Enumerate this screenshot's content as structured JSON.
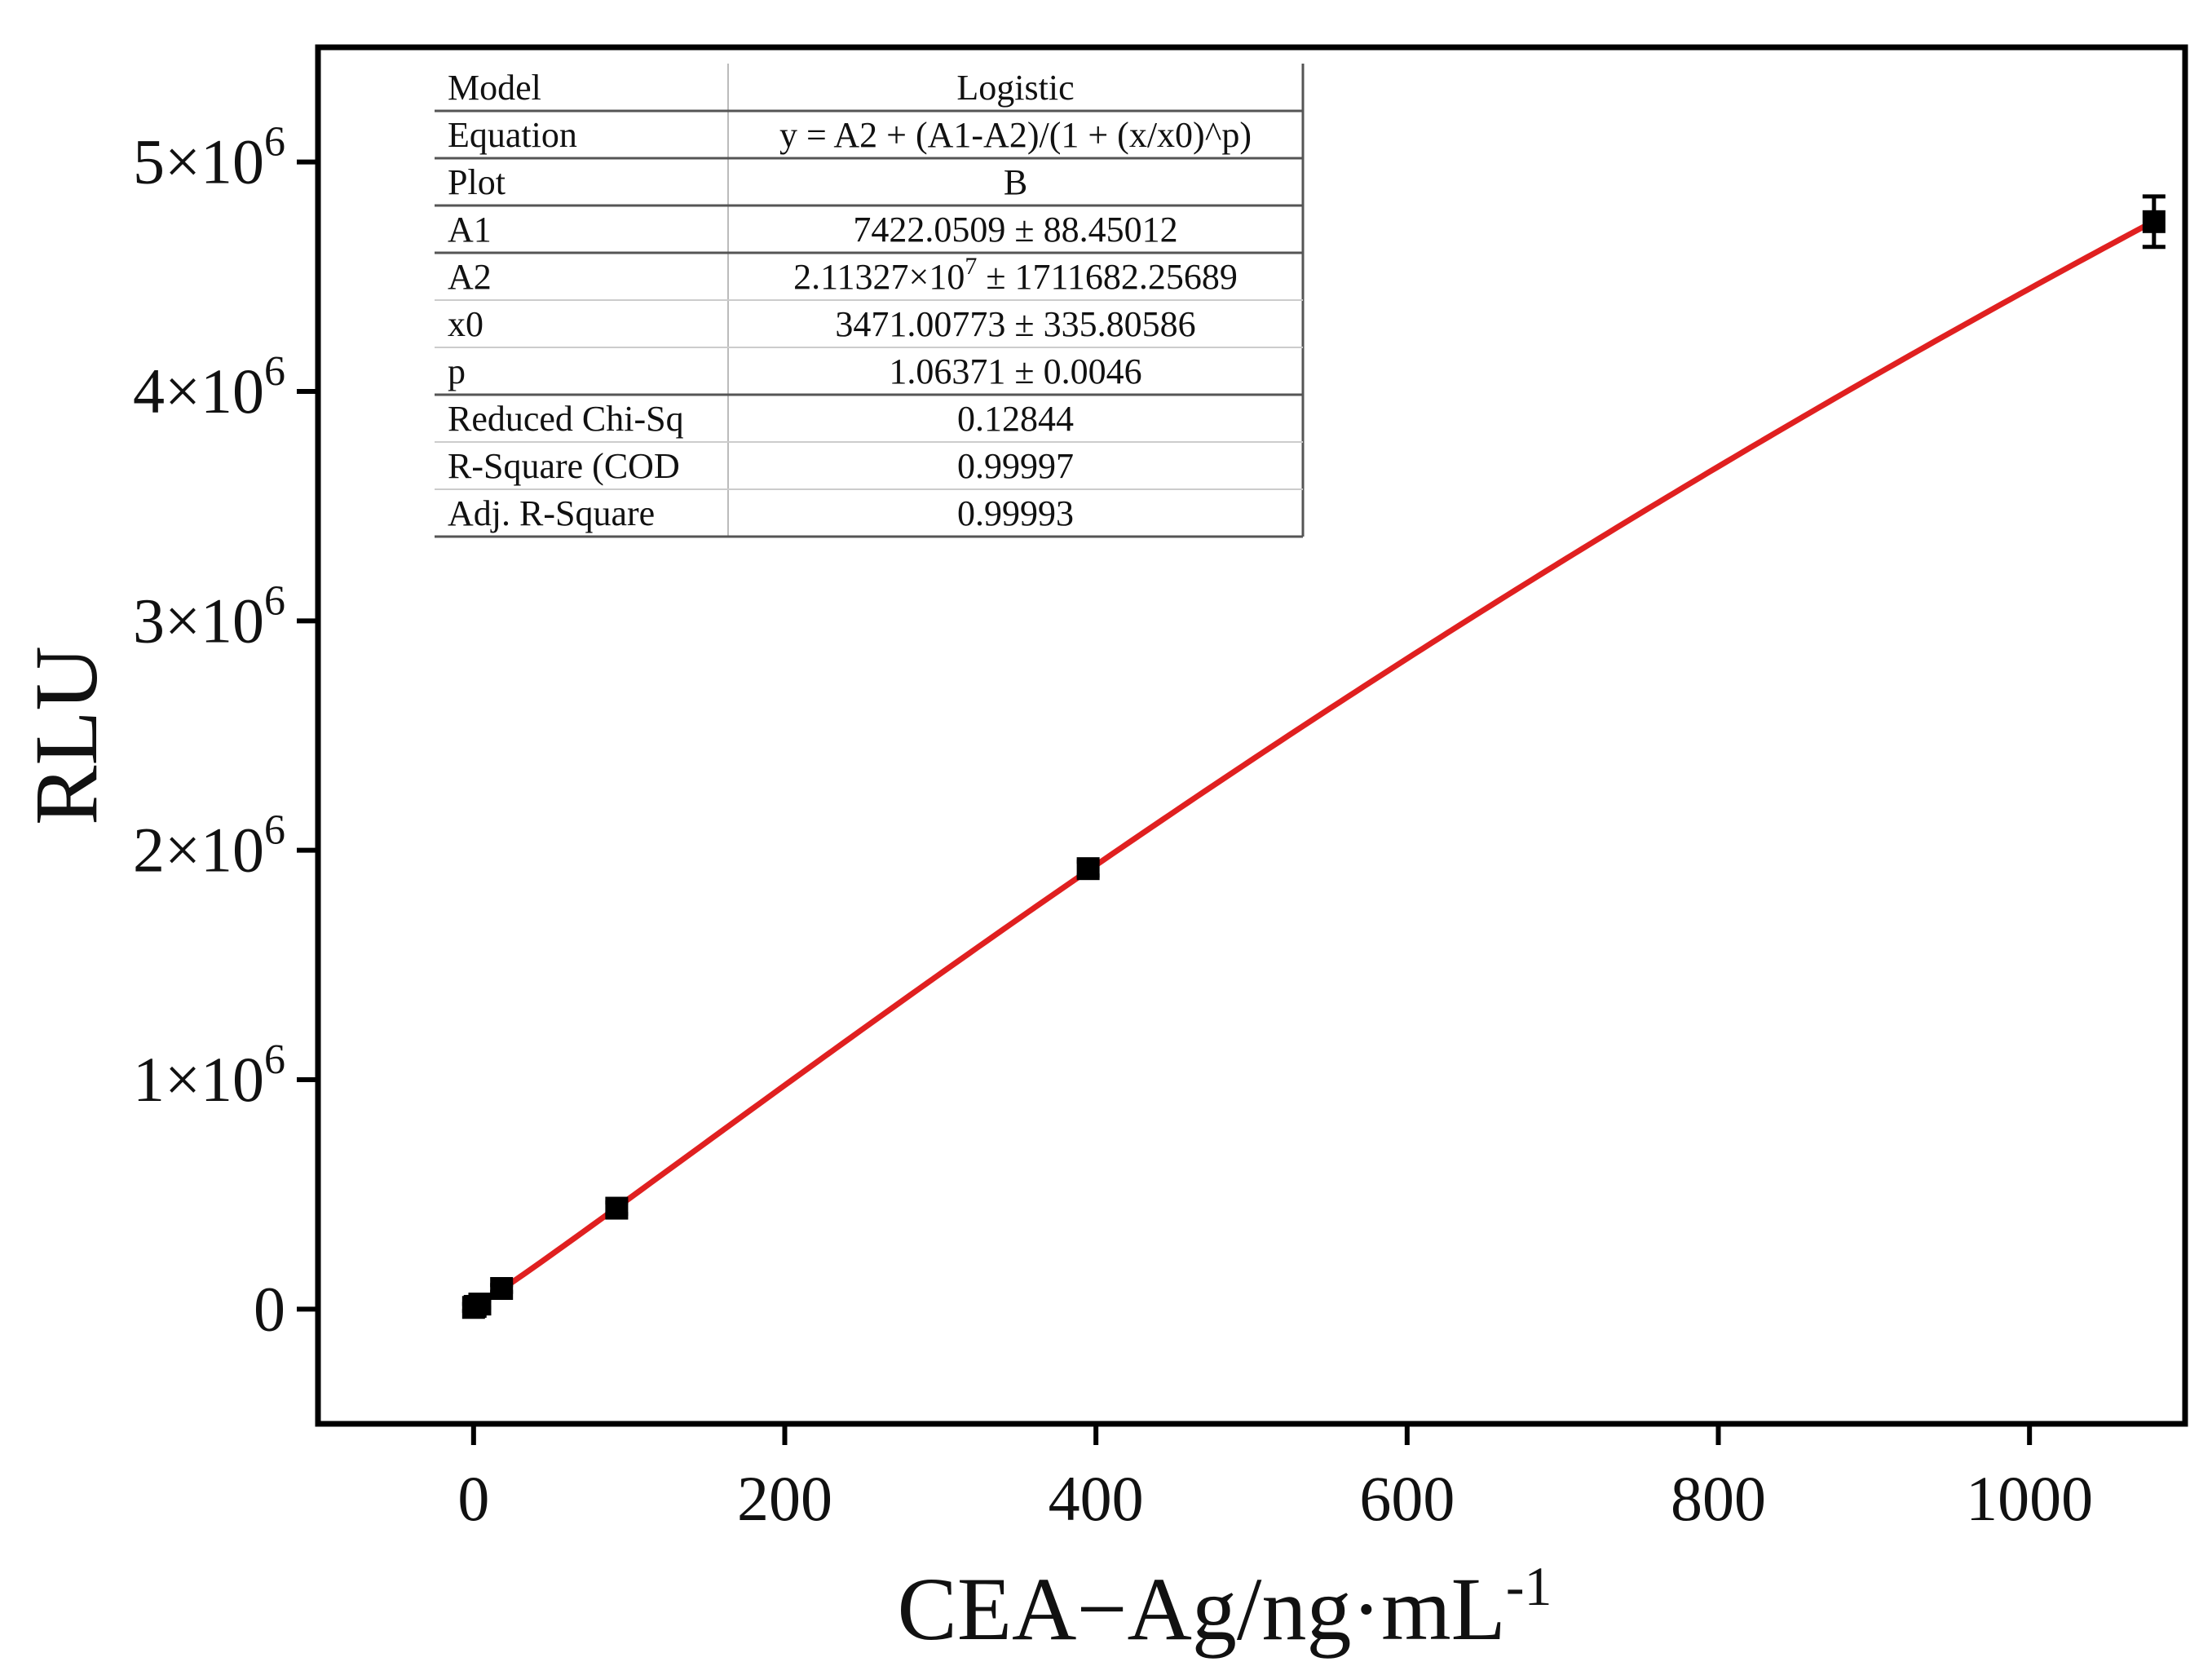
{
  "chart_data": {
    "type": "scatter",
    "title": "",
    "xlabel": "CEA−Ag/ng·mL",
    "xlabel_superscript": "-1",
    "ylabel": "RLU",
    "xlim": [
      -100,
      1100
    ],
    "ylim": [
      -500000,
      5500000
    ],
    "x_ticks": [
      {
        "value": 0,
        "label": "0"
      },
      {
        "value": 200,
        "label": "200"
      },
      {
        "value": 400,
        "label": "400"
      },
      {
        "value": 600,
        "label": "600"
      },
      {
        "value": 800,
        "label": "800"
      },
      {
        "value": 1000,
        "label": "1000"
      }
    ],
    "y_ticks": [
      {
        "value": 0,
        "base": "0",
        "exp": ""
      },
      {
        "value": 1000000,
        "base": "1×10",
        "exp": "6"
      },
      {
        "value": 2000000,
        "base": "2×10",
        "exp": "6"
      },
      {
        "value": 3000000,
        "base": "3×10",
        "exp": "6"
      },
      {
        "value": 4000000,
        "base": "4×10",
        "exp": "6"
      },
      {
        "value": 5000000,
        "base": "5×10",
        "exp": "6"
      }
    ],
    "grid": false,
    "series": [
      {
        "kind": "points",
        "marker": "square",
        "color": "#000000",
        "points": [
          {
            "x": 0,
            "y": 7400,
            "err": 15000
          },
          {
            "x": 1,
            "y": 12000,
            "err": 15000
          },
          {
            "x": 4,
            "y": 22000,
            "err": 15000
          },
          {
            "x": 18,
            "y": 90000,
            "err": 15000
          },
          {
            "x": 92,
            "y": 440000,
            "err": 25000
          },
          {
            "x": 395,
            "y": 1920000,
            "err": 30000
          },
          {
            "x": 1080,
            "y": 4740000,
            "err": 110000
          }
        ]
      },
      {
        "kind": "fit",
        "color": "#e02020",
        "model": "logistic",
        "params": {
          "A1": 7422.0509,
          "A2": 21132700,
          "x0": 3471.00773,
          "p": 1.06371
        },
        "x_range": [
          0,
          1080
        ]
      }
    ],
    "fit_table": {
      "rows": [
        {
          "label": "Model",
          "value": "Logistic"
        },
        {
          "label": "Equation",
          "value": "y = A2 + (A1-A2)/(1 + (x/x0)^p)"
        },
        {
          "label": "Plot",
          "value": "B"
        },
        {
          "label": "A1",
          "value": "7422.0509 ± 88.45012"
        },
        {
          "label": "A2",
          "value": "2.11327×10",
          "value_sup": "7",
          "value_tail": " ± 1711682.25689"
        },
        {
          "label": "x0",
          "value": "3471.00773 ± 335.80586"
        },
        {
          "label": "p",
          "value": "1.06371 ± 0.0046"
        },
        {
          "label": "Reduced Chi-Sq",
          "value": "0.12844"
        },
        {
          "label": "R-Square (COD",
          "value": "0.99997"
        },
        {
          "label": "Adj. R-Square",
          "value": "0.99993"
        }
      ]
    }
  }
}
